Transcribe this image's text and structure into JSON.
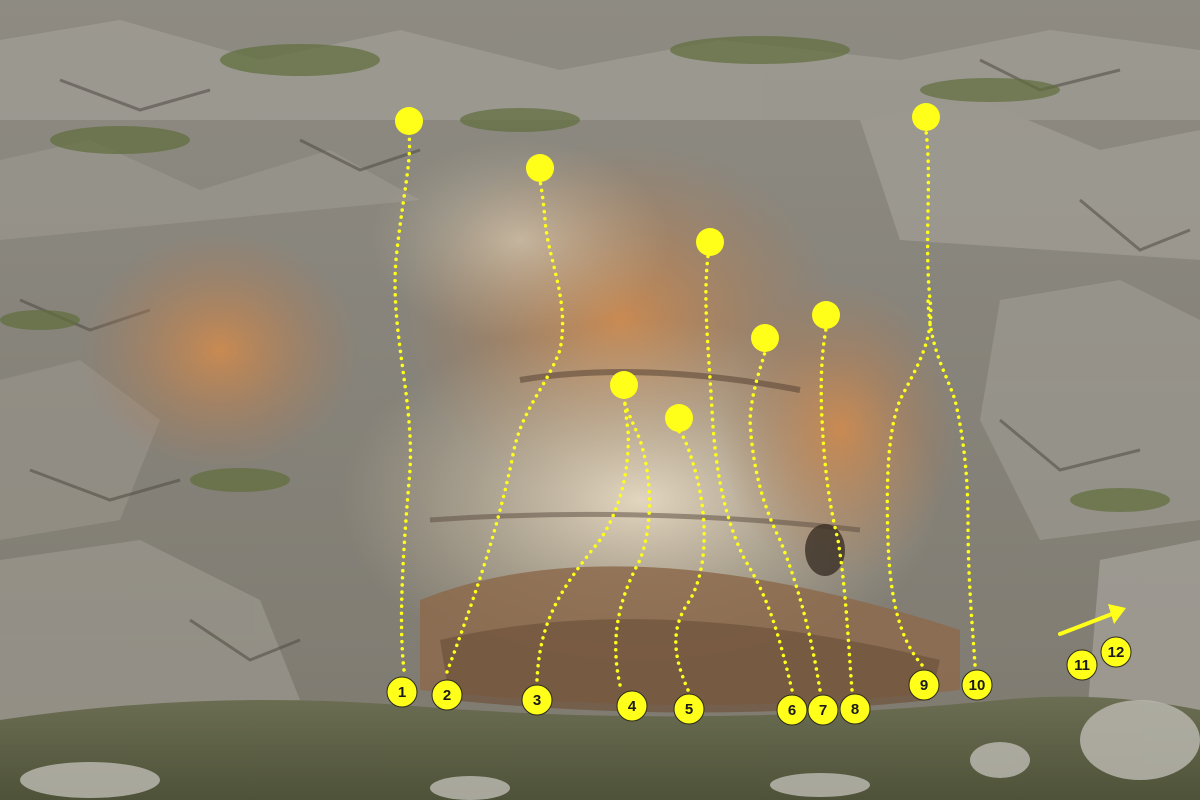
{
  "image": {
    "subject": "limestone crag topo",
    "marker_color": "#ffff1a",
    "marker_text_color": "#1a1a1a"
  },
  "routes": [
    {
      "number": "1"
    },
    {
      "number": "2"
    },
    {
      "number": "3"
    },
    {
      "number": "4"
    },
    {
      "number": "5"
    },
    {
      "number": "6"
    },
    {
      "number": "7"
    },
    {
      "number": "8"
    },
    {
      "number": "9"
    },
    {
      "number": "10"
    }
  ],
  "extra_routes": [
    {
      "number": "11"
    },
    {
      "number": "12"
    }
  ],
  "approach_arrow": {
    "icon": "arrow-icon",
    "direction": "up-right"
  }
}
